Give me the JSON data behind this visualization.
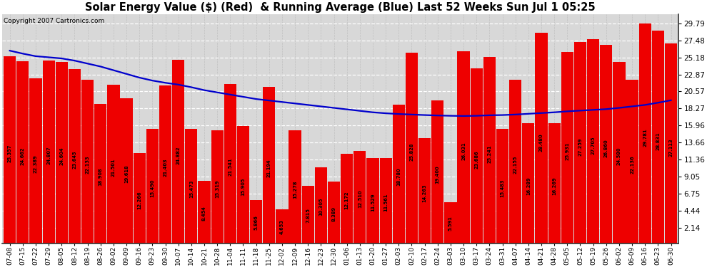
{
  "title": "Solar Energy Value ($) (Red)  & Running Average (Blue) Last 52 Weeks Sun Jul 1 05:25",
  "copyright": "Copyright 2007 Cartronics.com",
  "bar_color": "#ee0000",
  "line_color": "#0000cc",
  "background_color": "#ffffff",
  "plot_bg_color": "#d8d8d8",
  "grid_color": "#ffffff",
  "yticks": [
    2.14,
    4.44,
    6.75,
    9.05,
    11.36,
    13.66,
    15.96,
    18.27,
    20.57,
    22.87,
    25.18,
    27.48,
    29.79
  ],
  "dates": [
    "07-08",
    "07-15",
    "07-22",
    "07-29",
    "08-05",
    "08-12",
    "08-19",
    "08-26",
    "09-02",
    "09-09",
    "09-16",
    "09-23",
    "09-30",
    "10-07",
    "10-14",
    "10-21",
    "10-28",
    "11-04",
    "11-11",
    "11-18",
    "11-25",
    "12-02",
    "12-09",
    "12-16",
    "12-23",
    "12-30",
    "01-06",
    "01-13",
    "01-20",
    "01-27",
    "02-03",
    "02-10",
    "02-17",
    "02-24",
    "03-03",
    "03-10",
    "03-17",
    "03-24",
    "03-31",
    "04-07",
    "04-14",
    "04-21",
    "04-28",
    "05-05",
    "05-12",
    "05-19",
    "05-26",
    "06-02",
    "06-09",
    "06-16",
    "06-23",
    "06-30"
  ],
  "bar_values": [
    25.357,
    24.662,
    22.389,
    24.807,
    24.604,
    23.645,
    22.133,
    18.908,
    21.501,
    19.618,
    12.266,
    15.49,
    21.403,
    24.882,
    15.473,
    8.454,
    15.319,
    21.541,
    15.905,
    5.866,
    21.194,
    4.653,
    15.278,
    7.815,
    10.305,
    8.389,
    12.172,
    12.51,
    11.529,
    11.561,
    18.78,
    25.828,
    14.263,
    19.4,
    5.591,
    26.031,
    23.686,
    25.241,
    15.483,
    22.155,
    16.289,
    28.48,
    16.269,
    25.931,
    27.259,
    27.705,
    26.86,
    24.58,
    22.136,
    29.781,
    28.831,
    27.113
  ],
  "avg_values": [
    26.1,
    25.7,
    25.35,
    25.2,
    25.05,
    24.75,
    24.35,
    23.95,
    23.45,
    22.95,
    22.45,
    22.05,
    21.75,
    21.5,
    21.15,
    20.75,
    20.45,
    20.15,
    19.85,
    19.55,
    19.35,
    19.15,
    18.95,
    18.75,
    18.55,
    18.35,
    18.15,
    17.95,
    17.75,
    17.62,
    17.52,
    17.45,
    17.38,
    17.32,
    17.28,
    17.25,
    17.28,
    17.35,
    17.38,
    17.45,
    17.55,
    17.65,
    17.75,
    17.88,
    17.98,
    18.08,
    18.18,
    18.35,
    18.55,
    18.75,
    19.05,
    19.38
  ],
  "ylim": [
    0,
    31.0
  ],
  "title_fontsize": 10.5,
  "tick_fontsize": 7.5,
  "label_fontsize": 4.8,
  "copyright_fontsize": 6.5
}
